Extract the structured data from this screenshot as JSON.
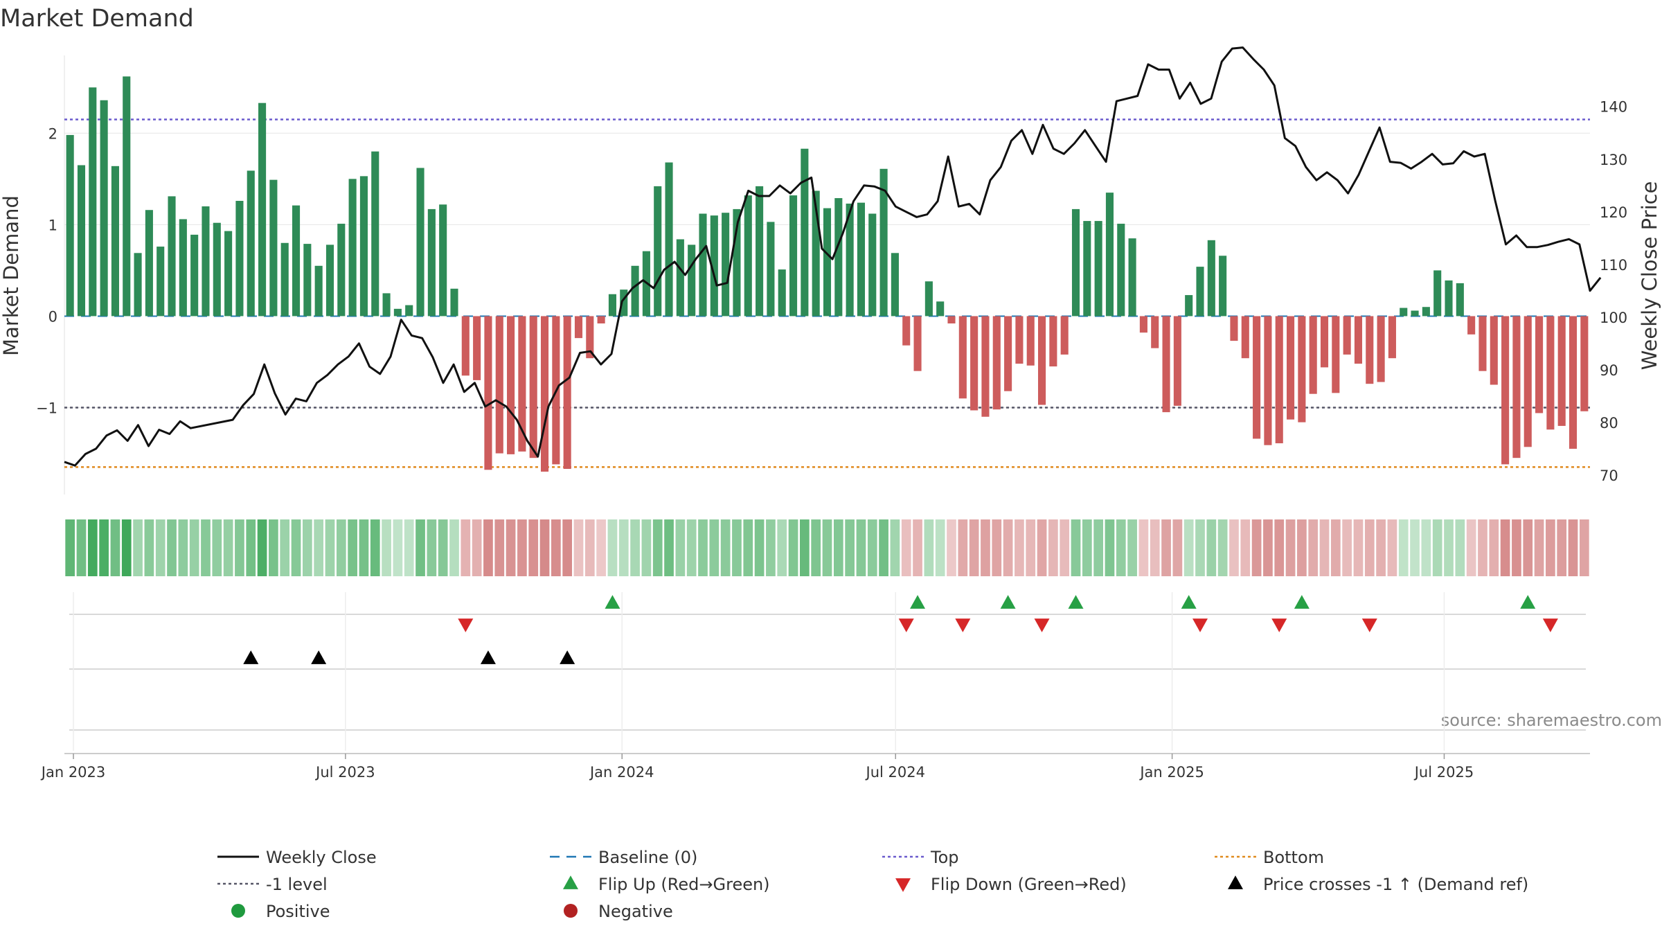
{
  "chart_data": {
    "type": "bar",
    "title": "Market Demand",
    "ylabel": "Market Demand",
    "y2label": "Weekly Close Price",
    "ylim": [
      -1.95,
      2.85
    ],
    "y2lim": [
      66.3,
      149.7
    ],
    "yticks": [
      2,
      1,
      0,
      -1
    ],
    "ytick_labels": [
      "2",
      "1",
      "0",
      "−1"
    ],
    "y2ticks": [
      140,
      130,
      120,
      110,
      100,
      90,
      80,
      70
    ],
    "x_start": "2022-12-26",
    "x_end": "2025-10-06",
    "xticks": [
      {
        "date": "2023-01-01",
        "label": "Jan 2023"
      },
      {
        "date": "2023-07-01",
        "label": "Jul 2023"
      },
      {
        "date": "2024-01-01",
        "label": "Jan 2024"
      },
      {
        "date": "2024-07-01",
        "label": "Jul 2024"
      },
      {
        "date": "2025-01-01",
        "label": "Jan 2025"
      },
      {
        "date": "2025-07-01",
        "label": "Jul 2025"
      }
    ],
    "reference_lines": {
      "top": 2.15,
      "minus_one": -1,
      "bottom": -1.65,
      "baseline": 0
    },
    "series": [
      {
        "name": "Market Demand",
        "type": "bar",
        "values": [
          1.98,
          1.65,
          2.5,
          2.36,
          1.64,
          2.62,
          0.69,
          1.16,
          0.76,
          1.31,
          1.06,
          0.89,
          1.2,
          1.02,
          0.93,
          1.26,
          1.59,
          2.33,
          1.49,
          0.8,
          1.21,
          0.79,
          0.55,
          0.78,
          1.01,
          1.5,
          1.53,
          1.8,
          0.25,
          0.08,
          0.12,
          1.62,
          1.17,
          1.22,
          0.3,
          -0.65,
          -0.7,
          -1.68,
          -1.5,
          -1.51,
          -1.48,
          -1.55,
          -1.7,
          -1.62,
          -1.67,
          -0.24,
          -0.46,
          -0.08,
          0.24,
          0.29,
          0.55,
          0.71,
          1.42,
          1.68,
          0.84,
          0.78,
          1.12,
          1.1,
          1.13,
          1.17,
          1.32,
          1.42,
          1.03,
          0.51,
          1.32,
          1.83,
          1.37,
          1.18,
          1.29,
          1.23,
          1.24,
          1.12,
          1.61,
          0.69,
          -0.32,
          -0.6,
          0.38,
          0.16,
          -0.08,
          -0.9,
          -1.03,
          -1.1,
          -1.02,
          -0.82,
          -0.52,
          -0.54,
          -0.97,
          -0.55,
          -0.42,
          1.17,
          1.04,
          1.04,
          1.35,
          1.01,
          0.85,
          -0.18,
          -0.35,
          -1.05,
          -0.98,
          0.23,
          0.54,
          0.83,
          0.66,
          -0.27,
          -0.46,
          -1.34,
          -1.41,
          -1.39,
          -1.13,
          -1.16,
          -0.85,
          -0.56,
          -0.84,
          -0.42,
          -0.52,
          -0.74,
          -0.72,
          -0.46,
          0.09,
          0.06,
          0.1,
          0.5,
          0.39,
          0.36,
          -0.2,
          -0.6,
          -0.75,
          -1.62,
          -1.55,
          -1.43,
          -1.06,
          -1.24,
          -1.2,
          -1.45,
          -1.04
        ]
      },
      {
        "name": "Weekly Close",
        "type": "line",
        "points": [
          [
            "2022-12-26",
            72.5
          ],
          [
            "2023-01-02",
            71.8
          ],
          [
            "2023-01-09",
            74
          ],
          [
            "2023-01-16",
            75
          ],
          [
            "2023-01-23",
            77.5
          ],
          [
            "2023-01-30",
            78.5
          ],
          [
            "2023-02-06",
            76.5
          ],
          [
            "2023-02-13",
            79.5
          ],
          [
            "2023-02-20",
            75.5
          ],
          [
            "2023-02-27",
            78.6
          ],
          [
            "2023-03-06",
            77.8
          ],
          [
            "2023-03-13",
            80.2
          ],
          [
            "2023-03-20",
            78.9
          ],
          [
            "2023-04-17",
            80.5
          ],
          [
            "2023-04-24",
            83.3
          ],
          [
            "2023-05-01",
            85.4
          ],
          [
            "2023-05-08",
            91
          ],
          [
            "2023-05-15",
            85.5
          ],
          [
            "2023-05-22",
            81.5
          ],
          [
            "2023-05-29",
            84.5
          ],
          [
            "2023-06-05",
            84
          ],
          [
            "2023-06-12",
            87.5
          ],
          [
            "2023-06-19",
            89
          ],
          [
            "2023-06-26",
            91
          ],
          [
            "2023-07-03",
            92.5
          ],
          [
            "2023-07-10",
            95
          ],
          [
            "2023-07-17",
            90.6
          ],
          [
            "2023-07-24",
            89.2
          ],
          [
            "2023-07-31",
            92.5
          ],
          [
            "2023-08-07",
            99.5
          ],
          [
            "2023-08-14",
            96.5
          ],
          [
            "2023-08-21",
            96
          ],
          [
            "2023-08-28",
            92.4
          ],
          [
            "2023-09-04",
            87.5
          ],
          [
            "2023-09-11",
            91
          ],
          [
            "2023-09-18",
            85.8
          ],
          [
            "2023-09-25",
            87.5
          ],
          [
            "2023-10-02",
            83
          ],
          [
            "2023-10-09",
            84.2
          ],
          [
            "2023-10-16",
            83
          ],
          [
            "2023-10-23",
            80.5
          ],
          [
            "2023-10-30",
            76.5
          ],
          [
            "2023-11-06",
            73.5
          ],
          [
            "2023-11-13",
            83
          ],
          [
            "2023-11-20",
            87
          ],
          [
            "2023-11-27",
            88.5
          ],
          [
            "2023-12-04",
            93.2
          ],
          [
            "2023-12-11",
            93.5
          ],
          [
            "2023-12-18",
            91
          ],
          [
            "2023-12-25",
            93
          ],
          [
            "2024-01-01",
            103
          ],
          [
            "2024-01-08",
            105.5
          ],
          [
            "2024-01-15",
            107
          ],
          [
            "2024-01-22",
            105.5
          ],
          [
            "2024-01-29",
            109
          ],
          [
            "2024-02-05",
            110.5
          ],
          [
            "2024-02-12",
            108
          ],
          [
            "2024-02-19",
            111
          ],
          [
            "2024-02-26",
            113.5
          ],
          [
            "2024-03-04",
            106
          ],
          [
            "2024-03-11",
            106.5
          ],
          [
            "2024-03-18",
            118
          ],
          [
            "2024-03-25",
            124
          ],
          [
            "2024-04-01",
            123
          ],
          [
            "2024-04-08",
            123
          ],
          [
            "2024-04-15",
            125
          ],
          [
            "2024-04-22",
            123.5
          ],
          [
            "2024-04-29",
            125.5
          ],
          [
            "2024-05-06",
            126.5
          ],
          [
            "2024-05-13",
            113
          ],
          [
            "2024-05-20",
            111
          ],
          [
            "2024-05-27",
            116
          ],
          [
            "2024-06-03",
            122
          ],
          [
            "2024-06-10",
            125
          ],
          [
            "2024-06-17",
            124.8
          ],
          [
            "2024-06-24",
            124
          ],
          [
            "2024-07-01",
            121
          ],
          [
            "2024-07-08",
            120
          ],
          [
            "2024-07-15",
            119
          ],
          [
            "2024-07-22",
            119.5
          ],
          [
            "2024-07-29",
            122
          ],
          [
            "2024-08-05",
            130.5
          ],
          [
            "2024-08-12",
            121
          ],
          [
            "2024-08-19",
            121.5
          ],
          [
            "2024-08-26",
            119.5
          ],
          [
            "2024-09-02",
            126
          ],
          [
            "2024-09-09",
            128.5
          ],
          [
            "2024-09-16",
            133.5
          ],
          [
            "2024-09-23",
            135.5
          ],
          [
            "2024-09-30",
            131
          ],
          [
            "2024-10-07",
            136.5
          ],
          [
            "2024-10-14",
            132
          ],
          [
            "2024-10-21",
            131
          ],
          [
            "2024-10-28",
            133
          ],
          [
            "2024-11-04",
            135.5
          ],
          [
            "2024-11-11",
            132.5
          ],
          [
            "2024-11-18",
            129.5
          ],
          [
            "2024-11-25",
            141
          ],
          [
            "2024-12-02",
            141.5
          ],
          [
            "2024-12-09",
            142
          ],
          [
            "2024-12-16",
            148
          ],
          [
            "2024-12-23",
            147
          ],
          [
            "2024-12-30",
            147
          ],
          [
            "2025-01-06",
            141.5
          ],
          [
            "2025-01-13",
            144.5
          ],
          [
            "2025-01-20",
            140.5
          ],
          [
            "2025-01-27",
            141.5
          ],
          [
            "2025-02-03",
            148.5
          ],
          [
            "2025-02-10",
            151
          ],
          [
            "2025-02-17",
            151.2
          ],
          [
            "2025-02-24",
            149
          ],
          [
            "2025-03-03",
            147
          ],
          [
            "2025-03-10",
            144
          ],
          [
            "2025-03-17",
            134
          ],
          [
            "2025-03-24",
            132.5
          ],
          [
            "2025-03-31",
            128.5
          ],
          [
            "2025-04-07",
            126
          ],
          [
            "2025-04-14",
            127.5
          ],
          [
            "2025-04-21",
            126
          ],
          [
            "2025-04-28",
            123.5
          ],
          [
            "2025-05-05",
            127
          ],
          [
            "2025-05-12",
            131.5
          ],
          [
            "2025-05-19",
            136
          ],
          [
            "2025-05-26",
            129.5
          ],
          [
            "2025-06-02",
            129.3
          ],
          [
            "2025-06-09",
            128.2
          ],
          [
            "2025-06-16",
            129.5
          ],
          [
            "2025-06-23",
            131
          ],
          [
            "2025-06-30",
            129
          ],
          [
            "2025-07-07",
            129.2
          ],
          [
            "2025-07-14",
            131.5
          ],
          [
            "2025-07-21",
            130.5
          ],
          [
            "2025-07-28",
            131
          ],
          [
            "2025-08-04",
            122
          ],
          [
            "2025-08-11",
            113.8
          ],
          [
            "2025-08-18",
            115.5
          ],
          [
            "2025-08-25",
            113.3
          ],
          [
            "2025-09-01",
            113.3
          ],
          [
            "2025-09-08",
            113.7
          ],
          [
            "2025-09-15",
            114.3
          ],
          [
            "2025-09-22",
            114.8
          ],
          [
            "2025-09-29",
            113.8
          ],
          [
            "2025-10-06",
            105
          ],
          [
            "2025-10-13",
            107.5
          ]
        ]
      }
    ],
    "flip_up_weeks": [
      48,
      75,
      83,
      89,
      99,
      109,
      129
    ],
    "flip_down_weeks": [
      35,
      74,
      79,
      86,
      100,
      107,
      115,
      131
    ],
    "price_cross_weeks": [
      16,
      22,
      37,
      44
    ],
    "source": "source: sharemaestro.com",
    "legend": [
      {
        "key": "weekly-close",
        "label": "Weekly Close"
      },
      {
        "key": "baseline",
        "label": "Baseline (0)"
      },
      {
        "key": "top",
        "label": "Top"
      },
      {
        "key": "bottom",
        "label": "Bottom"
      },
      {
        "key": "minus-one",
        "label": "-1 level"
      },
      {
        "key": "flip-up",
        "label": "Flip Up (Red→Green)"
      },
      {
        "key": "flip-down",
        "label": "Flip Down (Green→Red)"
      },
      {
        "key": "price-cross",
        "label": "Price crosses -1 ↑ (Demand ref)"
      },
      {
        "key": "positive",
        "label": "Positive"
      },
      {
        "key": "negative",
        "label": "Negative"
      }
    ],
    "colors": {
      "positive": "#2e8b57",
      "negative": "#cd5c5c",
      "line": "#111111",
      "baseline": "#1f77b4",
      "top": "#6a5acd",
      "minus_one": "#555566",
      "bottom": "#e08a1e",
      "flip_up": "#27a045",
      "flip_down": "#d62728",
      "cross": "#000000",
      "legend_positive": "#1f9a3e",
      "legend_negative": "#b22222"
    }
  }
}
